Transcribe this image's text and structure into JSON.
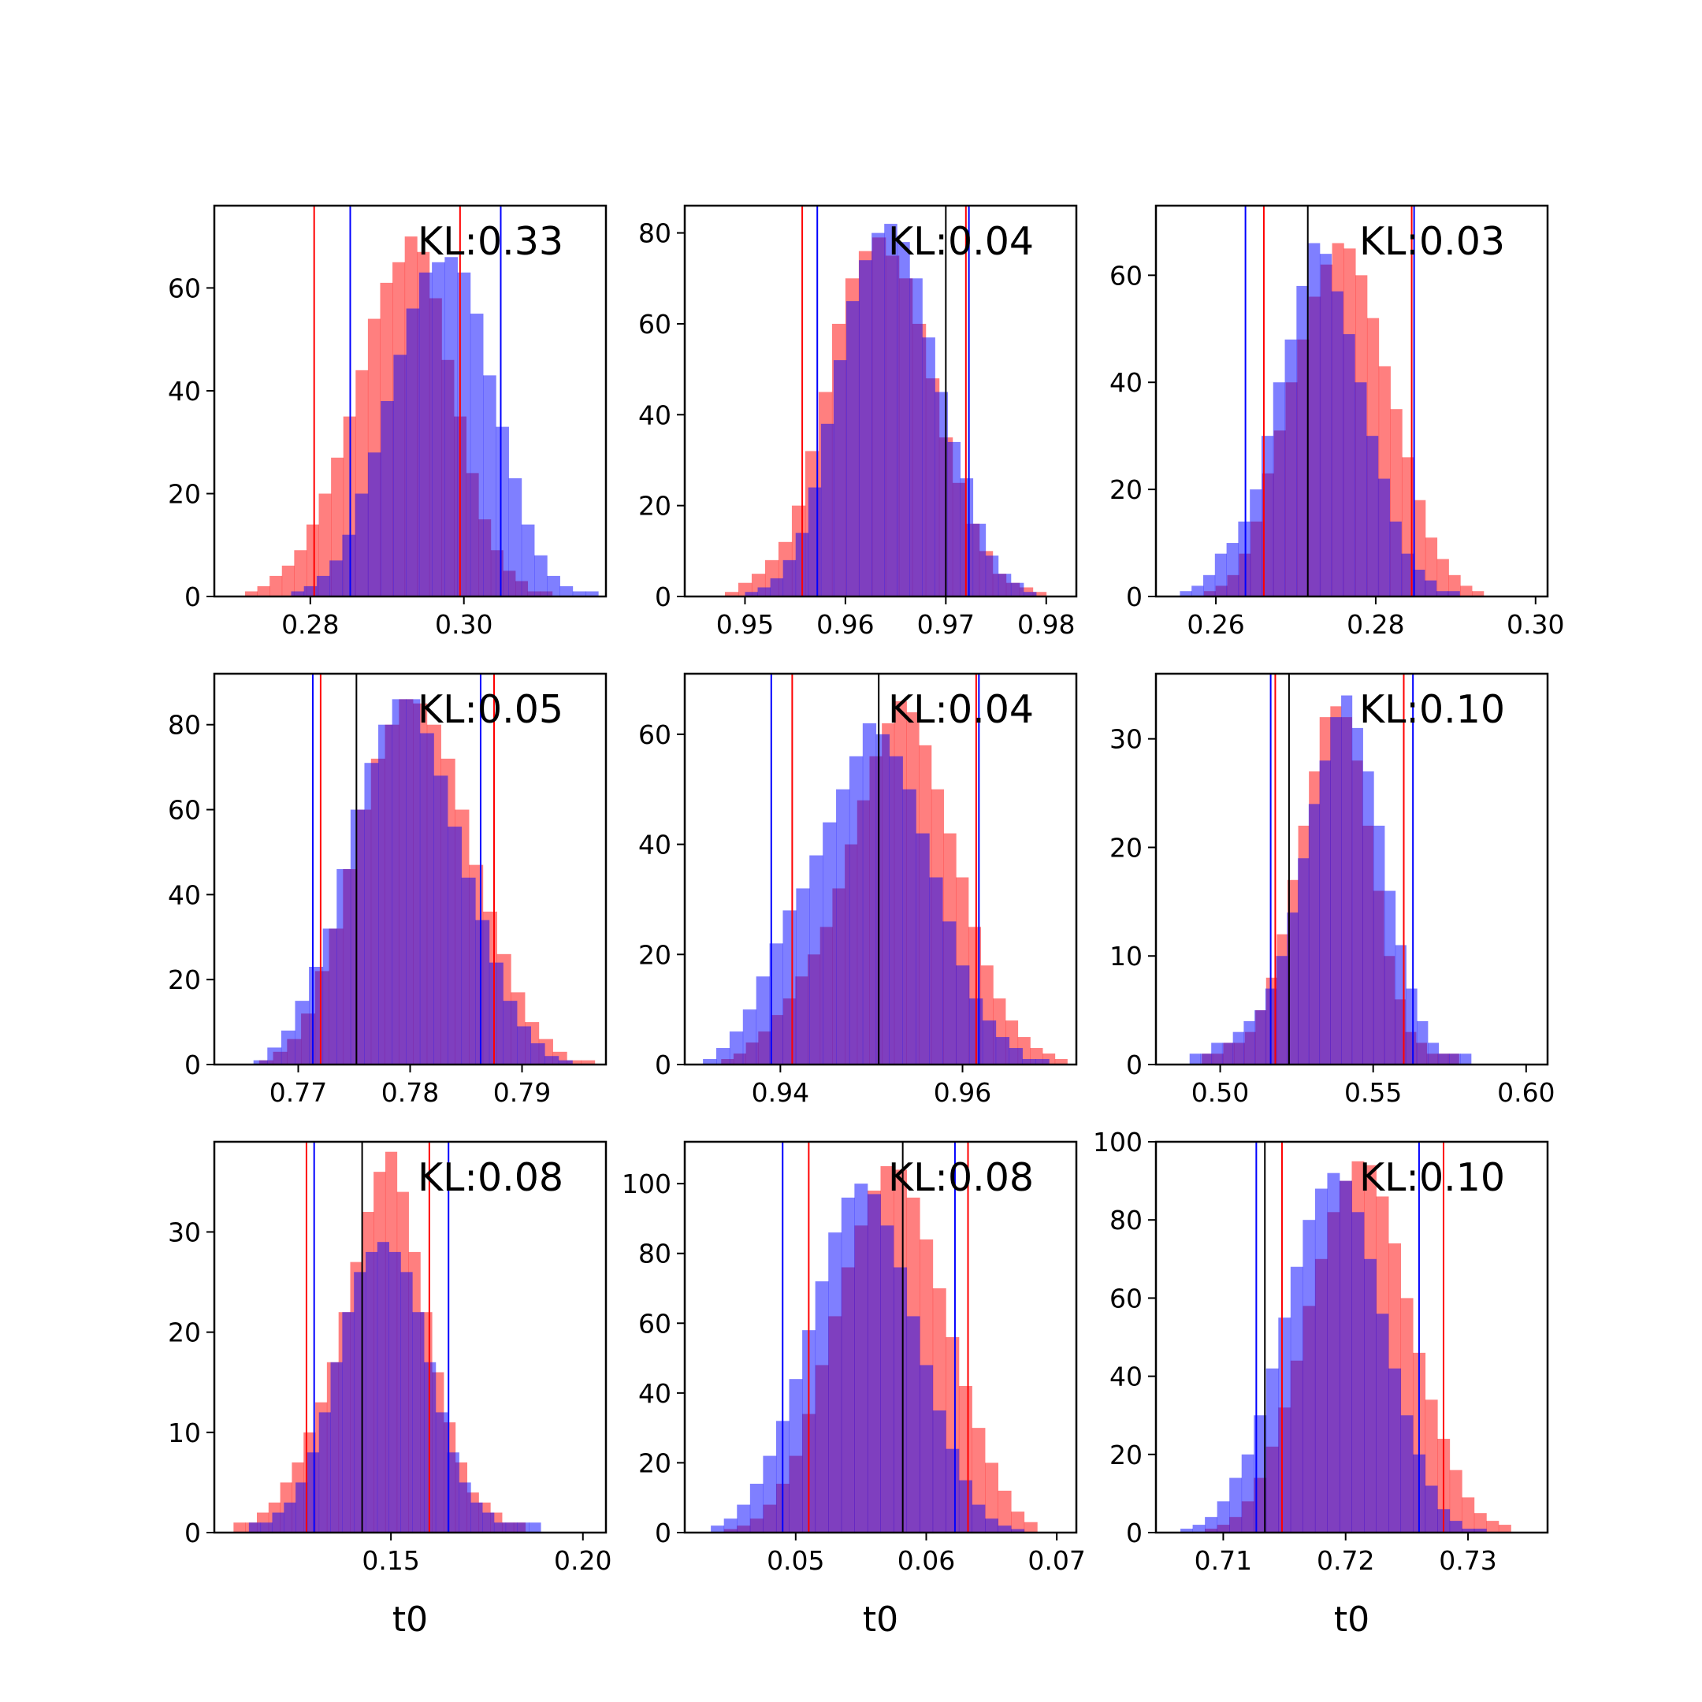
{
  "colors": {
    "series_a": "#ff0000",
    "series_b": "#0000ff",
    "truth_line": "#000000",
    "overlap": "#7f3fbf"
  },
  "chart_data": [
    {
      "type": "bar",
      "xlim": [
        0.2675,
        0.3185
      ],
      "ylim": [
        0,
        76
      ],
      "xticks": [
        "0.28",
        "0.30"
      ],
      "yticks": [
        "0",
        "20",
        "40",
        "60"
      ],
      "annotation": "KL:0.33",
      "xlabel": "",
      "true_value": null,
      "hist_a": {
        "start": 0.2715,
        "end": 0.3115,
        "counts": [
          1,
          2,
          4,
          6,
          9,
          14,
          20,
          27,
          35,
          44,
          54,
          61,
          65,
          70,
          67,
          58,
          46,
          35,
          24,
          15,
          9,
          5,
          3,
          1,
          1
        ]
      },
      "hist_b": {
        "start": 0.2775,
        "end": 0.3175,
        "counts": [
          1,
          2,
          4,
          7,
          12,
          20,
          28,
          38,
          47,
          56,
          63,
          65,
          66,
          63,
          55,
          43,
          33,
          23,
          14,
          8,
          4,
          2,
          1,
          1
        ]
      },
      "interval_a": [
        0.2805,
        0.2995
      ],
      "interval_b": [
        0.2852,
        0.3048
      ]
    },
    {
      "type": "bar",
      "xlim": [
        0.944,
        0.983
      ],
      "ylim": [
        0,
        86
      ],
      "xticks": [
        "0.95",
        "0.96",
        "0.97",
        "0.98"
      ],
      "yticks": [
        "0",
        "20",
        "40",
        "60",
        "80"
      ],
      "annotation": "KL:0.04",
      "xlabel": "",
      "true_value": 0.97,
      "hist_a": {
        "start": 0.948,
        "end": 0.98,
        "counts": [
          1,
          3,
          5,
          8,
          12,
          20,
          32,
          45,
          60,
          70,
          76,
          79,
          75,
          70,
          60,
          48,
          35,
          25,
          16,
          10,
          5,
          3,
          2,
          1
        ]
      },
      "hist_b": {
        "start": 0.95,
        "end": 0.979,
        "counts": [
          1,
          2,
          4,
          8,
          14,
          24,
          38,
          52,
          65,
          74,
          80,
          82,
          78,
          70,
          57,
          45,
          34,
          26,
          16,
          9,
          5,
          3,
          1
        ]
      },
      "interval_a": [
        0.9557,
        0.972
      ],
      "interval_b": [
        0.9572,
        0.9723
      ]
    },
    {
      "type": "bar",
      "xlim": [
        0.2525,
        0.3015
      ],
      "ylim": [
        0,
        73
      ],
      "xticks": [
        "0.26",
        "0.28",
        "0.30"
      ],
      "yticks": [
        "0",
        "20",
        "40",
        "60"
      ],
      "annotation": "KL:0.03",
      "xlabel": "",
      "true_value": 0.2715,
      "hist_a": {
        "start": 0.2585,
        "end": 0.2935,
        "counts": [
          1,
          2,
          4,
          8,
          14,
          23,
          31,
          40,
          48,
          56,
          62,
          66,
          65,
          60,
          52,
          43,
          35,
          26,
          18,
          11,
          7,
          4,
          2,
          1
        ]
      },
      "hist_b": {
        "start": 0.2555,
        "end": 0.2905,
        "counts": [
          1,
          2,
          4,
          8,
          10,
          14,
          20,
          30,
          40,
          48,
          58,
          66,
          64,
          57,
          49,
          40,
          30,
          22,
          14,
          8,
          5,
          3,
          1,
          1
        ]
      },
      "interval_a": [
        0.266,
        0.2845
      ],
      "interval_b": [
        0.2637,
        0.2848
      ]
    },
    {
      "type": "bar",
      "xlim": [
        0.7625,
        0.7975
      ],
      "ylim": [
        0,
        92
      ],
      "xticks": [
        "0.77",
        "0.78",
        "0.79"
      ],
      "yticks": [
        "0",
        "20",
        "40",
        "60",
        "80"
      ],
      "annotation": "KL:0.05",
      "xlabel": "",
      "true_value": 0.7752,
      "hist_a": {
        "start": 0.7665,
        "end": 0.7965,
        "counts": [
          1,
          3,
          6,
          12,
          22,
          32,
          46,
          60,
          72,
          80,
          86,
          85,
          80,
          72,
          60,
          47,
          36,
          26,
          17,
          10,
          6,
          3,
          1,
          1
        ]
      },
      "hist_b": {
        "start": 0.766,
        "end": 0.7945,
        "counts": [
          1,
          4,
          8,
          15,
          23,
          32,
          46,
          60,
          71,
          80,
          86,
          86,
          78,
          68,
          56,
          44,
          34,
          24,
          15,
          9,
          5,
          2,
          1
        ]
      },
      "interval_a": [
        0.772,
        0.7875
      ],
      "interval_b": [
        0.7713,
        0.7863
      ]
    },
    {
      "type": "bar",
      "xlim": [
        0.9295,
        0.9725
      ],
      "ylim": [
        0,
        71
      ],
      "xticks": [
        "0.94",
        "0.96"
      ],
      "yticks": [
        "0",
        "20",
        "40",
        "60"
      ],
      "annotation": "KL:0.04",
      "xlabel": "",
      "true_value": 0.9508,
      "hist_a": {
        "start": 0.9335,
        "end": 0.9715,
        "counts": [
          1,
          2,
          4,
          6,
          9,
          12,
          16,
          20,
          25,
          32,
          40,
          48,
          56,
          62,
          66,
          64,
          58,
          50,
          42,
          34,
          25,
          18,
          12,
          8,
          5,
          3,
          2,
          1
        ]
      },
      "hist_b": {
        "start": 0.9315,
        "end": 0.9695,
        "counts": [
          1,
          3,
          6,
          10,
          16,
          22,
          28,
          32,
          38,
          44,
          50,
          56,
          62,
          60,
          56,
          50,
          42,
          34,
          26,
          18,
          12,
          8,
          5,
          3,
          1,
          1
        ]
      },
      "interval_a": [
        0.9413,
        0.9615
      ],
      "interval_b": [
        0.939,
        0.9618
      ]
    },
    {
      "type": "bar",
      "xlim": [
        0.479,
        0.607
      ],
      "ylim": [
        0,
        36
      ],
      "xticks": [
        "0.50",
        "0.55",
        "0.60"
      ],
      "yticks": [
        "0",
        "10",
        "20",
        "30"
      ],
      "annotation": "KL:0.10",
      "xlabel": "",
      "true_value": 0.5225,
      "hist_a": {
        "start": 0.494,
        "end": 0.578,
        "counts": [
          1,
          1,
          2,
          2,
          3,
          5,
          8,
          12,
          17,
          22,
          27,
          32,
          33,
          32,
          28,
          22,
          16,
          10,
          6,
          3,
          2,
          1,
          1,
          1
        ]
      },
      "hist_b": {
        "start": 0.49,
        "end": 0.582,
        "counts": [
          1,
          1,
          2,
          2,
          3,
          4,
          5,
          7,
          10,
          14,
          19,
          24,
          28,
          32,
          34,
          31,
          27,
          22,
          16,
          11,
          7,
          4,
          2,
          1,
          1,
          1
        ]
      },
      "interval_a": [
        0.518,
        0.56
      ],
      "interval_b": [
        0.5165,
        0.563
      ]
    },
    {
      "type": "bar",
      "xlim": [
        0.104,
        0.206
      ],
      "ylim": [
        0,
        39
      ],
      "xticks": [
        "0.15",
        "0.20"
      ],
      "yticks": [
        "0",
        "10",
        "20",
        "30"
      ],
      "annotation": "KL:0.08",
      "xlabel": "t0",
      "true_value": 0.1425,
      "hist_a": {
        "start": 0.109,
        "end": 0.185,
        "counts": [
          1,
          1,
          2,
          3,
          5,
          7,
          10,
          13,
          17,
          22,
          27,
          32,
          36,
          38,
          34,
          28,
          22,
          16,
          11,
          7,
          4,
          3,
          2,
          1,
          1
        ]
      },
      "hist_b": {
        "start": 0.113,
        "end": 0.189,
        "counts": [
          1,
          1,
          2,
          3,
          5,
          8,
          12,
          17,
          22,
          26,
          28,
          29,
          28,
          26,
          22,
          17,
          12,
          8,
          5,
          3,
          2,
          1,
          1,
          1,
          1
        ]
      },
      "interval_a": [
        0.128,
        0.16
      ],
      "interval_b": [
        0.13,
        0.165
      ]
    },
    {
      "type": "bar",
      "xlim": [
        0.0415,
        0.0715
      ],
      "ylim": [
        0,
        112
      ],
      "xticks": [
        "0.05",
        "0.06",
        "0.07"
      ],
      "yticks": [
        "0",
        "20",
        "40",
        "60",
        "80",
        "100"
      ],
      "annotation": "KL:0.08",
      "xlabel": "t0",
      "true_value": 0.0582,
      "hist_a": {
        "start": 0.0445,
        "end": 0.0685,
        "counts": [
          1,
          2,
          4,
          8,
          14,
          22,
          34,
          48,
          62,
          76,
          88,
          98,
          105,
          104,
          96,
          84,
          70,
          56,
          42,
          30,
          20,
          12,
          6,
          3
        ]
      },
      "hist_b": {
        "start": 0.0435,
        "end": 0.0675,
        "counts": [
          2,
          4,
          8,
          14,
          22,
          32,
          44,
          58,
          72,
          86,
          96,
          100,
          97,
          88,
          76,
          62,
          48,
          35,
          24,
          15,
          8,
          4,
          2,
          1
        ]
      },
      "interval_a": [
        0.051,
        0.0632
      ],
      "interval_b": [
        0.049,
        0.0622
      ]
    },
    {
      "type": "bar",
      "xlim": [
        0.7045,
        0.7365
      ],
      "ylim": [
        0,
        100
      ],
      "xticks": [
        "0.71",
        "0.72",
        "0.73"
      ],
      "yticks": [
        "0",
        "20",
        "40",
        "60",
        "80",
        "100"
      ],
      "annotation": "KL:0.10",
      "xlabel": "t0",
      "true_value": 0.7134,
      "hist_a": {
        "start": 0.7085,
        "end": 0.7335,
        "counts": [
          1,
          2,
          4,
          8,
          14,
          22,
          32,
          44,
          58,
          70,
          82,
          90,
          95,
          94,
          86,
          74,
          60,
          46,
          34,
          24,
          16,
          9,
          5,
          3,
          2
        ]
      },
      "hist_b": {
        "start": 0.7065,
        "end": 0.7315,
        "counts": [
          1,
          2,
          4,
          8,
          14,
          20,
          30,
          42,
          55,
          68,
          80,
          88,
          92,
          90,
          82,
          70,
          56,
          42,
          30,
          20,
          12,
          6,
          3,
          1,
          1
        ]
      },
      "interval_a": [
        0.7148,
        0.728
      ],
      "interval_b": [
        0.7127,
        0.726
      ]
    }
  ]
}
